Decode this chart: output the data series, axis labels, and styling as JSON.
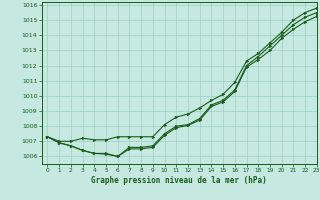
{
  "title": "Graphe pression niveau de la mer (hPa)",
  "xlim": [
    -0.5,
    23
  ],
  "ylim": [
    1005.5,
    1016.2
  ],
  "yticks": [
    1006,
    1007,
    1008,
    1009,
    1010,
    1011,
    1012,
    1013,
    1014,
    1015,
    1016
  ],
  "xticks": [
    0,
    1,
    2,
    3,
    4,
    5,
    6,
    7,
    8,
    9,
    10,
    11,
    12,
    13,
    14,
    15,
    16,
    17,
    18,
    19,
    20,
    21,
    22,
    23
  ],
  "bg_color": "#c5e8e0",
  "grid_color": "#9dcfc7",
  "line_color": "#1a5c1a",
  "series1": [
    1007.3,
    1006.9,
    1006.7,
    1006.4,
    1006.2,
    1006.2,
    1006.0,
    1006.6,
    1006.6,
    1006.7,
    1007.5,
    1008.0,
    1008.1,
    1008.5,
    1009.4,
    1009.7,
    1010.4,
    1012.0,
    1012.6,
    1013.3,
    1014.0,
    1014.7,
    1015.2,
    1015.5
  ],
  "series2": [
    1007.3,
    1006.9,
    1006.7,
    1006.4,
    1006.2,
    1006.15,
    1006.0,
    1006.5,
    1006.5,
    1006.6,
    1007.4,
    1007.9,
    1008.05,
    1008.4,
    1009.3,
    1009.6,
    1010.3,
    1011.9,
    1012.4,
    1013.0,
    1013.8,
    1014.4,
    1014.9,
    1015.25
  ],
  "series3": [
    1007.3,
    1007.0,
    1007.0,
    1007.2,
    1007.1,
    1007.1,
    1007.3,
    1007.3,
    1007.3,
    1007.3,
    1008.1,
    1008.6,
    1008.8,
    1009.2,
    1009.7,
    1010.1,
    1010.9,
    1012.3,
    1012.8,
    1013.5,
    1014.2,
    1015.0,
    1015.5,
    1015.8
  ]
}
